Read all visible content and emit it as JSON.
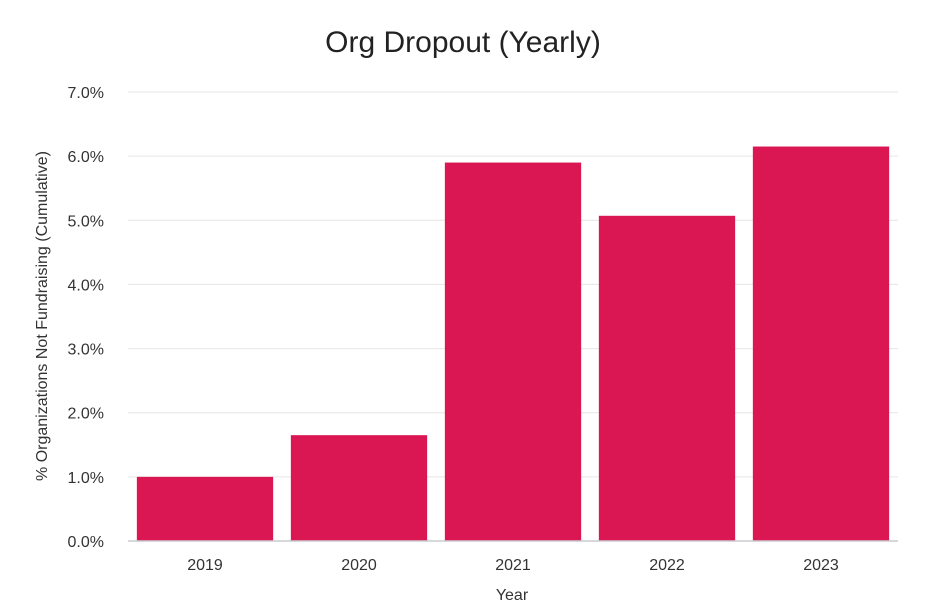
{
  "colors": {
    "bar": "#DA1752",
    "grid": "#E6E6E6",
    "baseline": "#C9CCD1",
    "text": "#333333",
    "title": "#222222"
  },
  "chart_data": {
    "type": "bar",
    "title": "Org Dropout (Yearly)",
    "xlabel": "Year",
    "ylabel": "% Organizations Not Fundraising (Cumulative)",
    "categories": [
      "2019",
      "2020",
      "2021",
      "2022",
      "2023"
    ],
    "values": [
      1.0,
      1.65,
      5.9,
      5.07,
      6.15
    ],
    "ylim": [
      0,
      7.0
    ],
    "yticks": [
      "0.0%",
      "1.0%",
      "2.0%",
      "3.0%",
      "4.0%",
      "5.0%",
      "6.0%",
      "7.0%"
    ],
    "ytick_values": [
      0,
      1,
      2,
      3,
      4,
      5,
      6,
      7
    ],
    "grid": true,
    "legend": "none"
  }
}
